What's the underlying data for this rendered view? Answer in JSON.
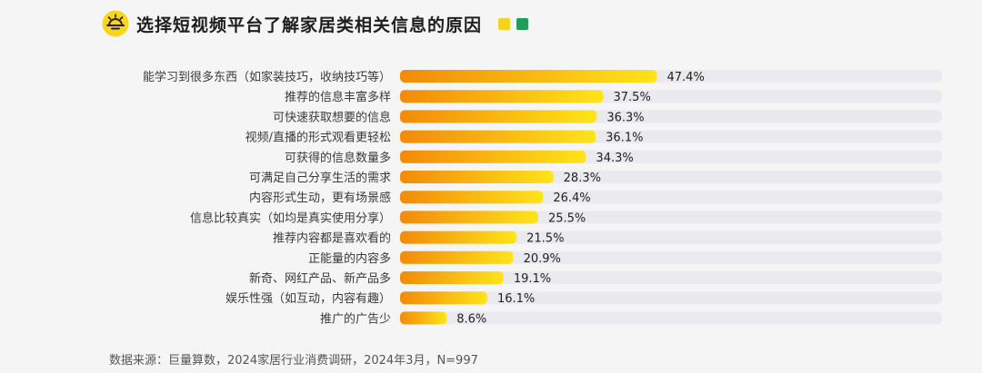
{
  "header": {
    "title": "选择短视频平台了解家居类相关信息的原因",
    "legend_colors": [
      "#f5d31f",
      "#1e9e5a"
    ]
  },
  "source": "数据来源：巨量算数，2024家居行业消费调研，2024年3月，N=997",
  "colors": {
    "bar_start": "#f28a0a",
    "bar_end": "#ffe41a",
    "track": "#e9e9ee",
    "label": "#3a3a3a"
  },
  "chart_data": {
    "type": "bar",
    "orientation": "horizontal",
    "title": "选择短视频平台了解家居类相关信息的原因",
    "value_suffix": "%",
    "xlim": [
      0,
      100
    ],
    "categories": [
      "能学习到很多东西（如家装技巧，收纳技巧等）",
      "推荐的信息丰富多样",
      "可快速获取想要的信息",
      "视频/直播的形式观看更轻松",
      "可获得的信息数量多",
      "可满足自己分享生活的需求",
      "内容形式生动，更有场景感",
      "信息比较真实（如均是真实使用分享）",
      "推荐内容都是喜欢看的",
      "正能量的内容多",
      "新奇、网红产品、新产品多",
      "娱乐性强（如互动，内容有趣）",
      "推广的广告少"
    ],
    "values": [
      47.4,
      37.5,
      36.3,
      36.1,
      34.3,
      28.3,
      26.4,
      25.5,
      21.5,
      20.9,
      19.1,
      16.1,
      8.6
    ],
    "data_labels": [
      "47.4%",
      "37.5%",
      "36.3%",
      "36.1%",
      "34.3%",
      "28.3%",
      "26.4%",
      "25.5%",
      "21.5%",
      "20.9%",
      "19.1%",
      "16.1%",
      "8.6%"
    ]
  }
}
